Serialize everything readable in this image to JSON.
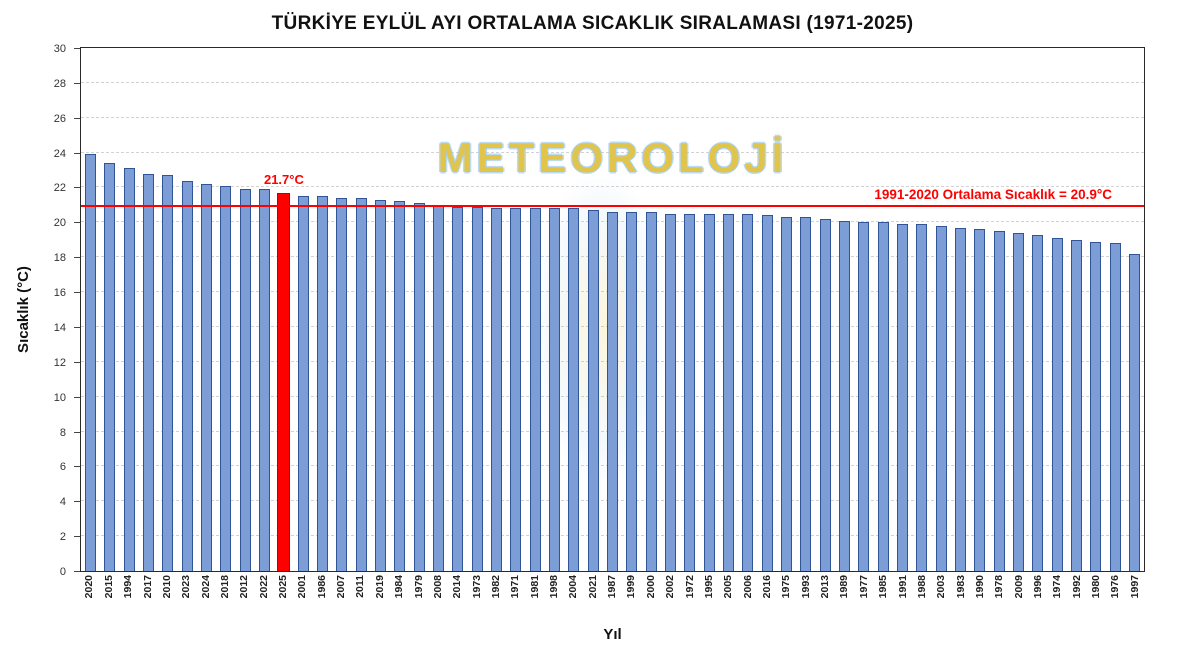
{
  "chart_data": {
    "type": "bar",
    "title": "TÜRKİYE EYLÜL AYI ORTALAMA SICAKLIK SIRALAMASI (1971-2025)",
    "xlabel": "Yıl",
    "ylabel": "Sıcaklık (°C)",
    "ylim": [
      0,
      30
    ],
    "ytick_step": 2,
    "grid": true,
    "legend": "none",
    "categories": [
      "2020",
      "2015",
      "1994",
      "2017",
      "2010",
      "2023",
      "2024",
      "2018",
      "2012",
      "2022",
      "2025",
      "2001",
      "1986",
      "2007",
      "2011",
      "2019",
      "1984",
      "1979",
      "2008",
      "2014",
      "1973",
      "1982",
      "1971",
      "1981",
      "1998",
      "2004",
      "2021",
      "1987",
      "1999",
      "2000",
      "2002",
      "1972",
      "1995",
      "2005",
      "2006",
      "2016",
      "1975",
      "1993",
      "2013",
      "1989",
      "1977",
      "1985",
      "1991",
      "1988",
      "2003",
      "1983",
      "1990",
      "1978",
      "2009",
      "1996",
      "1974",
      "1992",
      "1980",
      "1976",
      "1997"
    ],
    "values": [
      23.9,
      23.4,
      23.1,
      22.8,
      22.7,
      22.4,
      22.2,
      22.1,
      21.9,
      21.9,
      21.7,
      21.5,
      21.5,
      21.4,
      21.4,
      21.3,
      21.2,
      21.1,
      21.0,
      20.9,
      20.9,
      20.8,
      20.8,
      20.8,
      20.8,
      20.8,
      20.7,
      20.6,
      20.6,
      20.6,
      20.5,
      20.5,
      20.5,
      20.5,
      20.5,
      20.4,
      20.3,
      20.3,
      20.2,
      20.1,
      20.0,
      20.0,
      19.9,
      19.9,
      19.8,
      19.7,
      19.6,
      19.5,
      19.4,
      19.3,
      19.1,
      19.0,
      18.9,
      18.8,
      18.2
    ],
    "highlight": {
      "category": "2025",
      "value": 21.7,
      "label": "21.7°C",
      "color": "#FF0000",
      "border_color": "#C00000"
    },
    "reference_line": {
      "value": 20.9,
      "label": "1991-2020 Ortalama Sıcaklık = 20.9°C",
      "color": "#FF0000"
    },
    "bar_color": "#7D9DD6",
    "bar_border_color": "#2F5597",
    "grid_color": "#D2D2D2"
  },
  "watermark": {
    "text": "METEOROLOJİ",
    "color": "rgba(243,195,35,0.8)"
  }
}
